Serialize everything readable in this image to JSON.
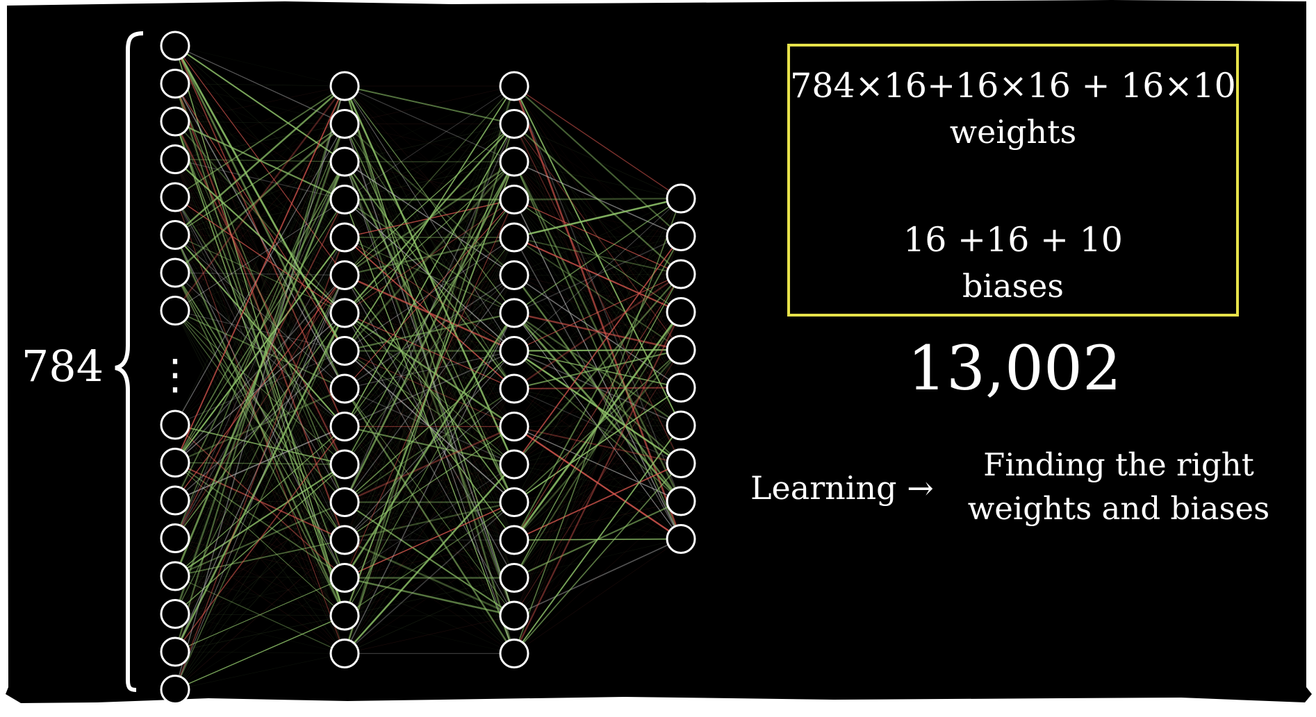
{
  "diagram": {
    "input_layer_size_label": "784",
    "ellipsis": "⋮",
    "weights_formula": "784×16+16×16 + 16×10",
    "weights_label": "weights",
    "biases_formula": "16 +16 + 10",
    "biases_label": "biases",
    "total_parameters": "13,002",
    "learning_label": "Learning →",
    "learning_definition_line1": "Finding the right",
    "learning_definition_line2": "weights and biases"
  },
  "colors": {
    "background": "#000000",
    "frame": "#ffffff",
    "box_border": "#e7e24a",
    "node_stroke": "#ffffff",
    "positive_weight": "#8fc46a",
    "negative_weight": "#d9574f",
    "neutral_weight": "#c9c9c9"
  },
  "network": {
    "layers": [
      {
        "name": "input",
        "visible_nodes_top": 8,
        "visible_nodes_bottom": 8
      },
      {
        "name": "hidden-1",
        "nodes": 16
      },
      {
        "name": "hidden-2",
        "nodes": 16
      },
      {
        "name": "output",
        "nodes": 10
      }
    ]
  }
}
